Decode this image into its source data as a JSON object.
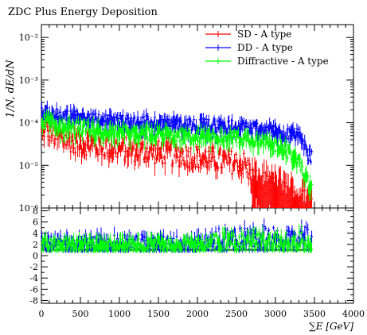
{
  "title": "ZDC Plus Energy Deposition",
  "chart_data": [
    {
      "panel": "main",
      "type": "errorbar",
      "ylabel": "1/N, dE/dN",
      "yscale": "log",
      "ylim": [
        1e-06,
        0.02
      ],
      "xlim": [
        0,
        4000
      ],
      "ytick_labels": [
        "10⁻²",
        "10⁻³",
        "10⁻⁴",
        "10⁻⁵",
        "10⁻⁶"
      ],
      "ytick_values": [
        0.01,
        0.001,
        0.0001,
        1e-05,
        1e-06
      ],
      "legend": "top-right",
      "series": [
        {
          "name": "SD - A type",
          "color": "#ff0000",
          "profile_x": [
            0,
            50,
            200,
            500,
            1000,
            1500,
            2000,
            2300,
            2600,
            2750,
            3000,
            3200,
            3300,
            3450
          ],
          "profile_y": [
            6e-05,
            8e-05,
            4.5e-05,
            3.5e-05,
            2.5e-05,
            2e-05,
            1.6e-05,
            1.3e-05,
            1.1e-05,
            4e-06,
            3e-06,
            2e-06,
            1.5e-06,
            1.5e-06
          ]
        },
        {
          "name": "DD - A type",
          "color": "#0000ff",
          "profile_x": [
            0,
            50,
            200,
            500,
            1000,
            1500,
            2000,
            2500,
            2900,
            3100,
            3300,
            3450
          ],
          "profile_y": [
            0.0002,
            0.00019,
            0.00015,
            0.00013,
            0.00011,
            0.0001,
            9e-05,
            8e-05,
            7e-05,
            6e-05,
            5e-05,
            1.5e-05
          ]
        },
        {
          "name": "Diffractive - A type",
          "color": "#00ff00",
          "profile_x": [
            0,
            50,
            200,
            500,
            1000,
            1500,
            2000,
            2500,
            2900,
            3100,
            3300,
            3450
          ],
          "profile_y": [
            0.00012,
            0.00012,
            9e-05,
            7.5e-05,
            6e-05,
            5.5e-05,
            5e-05,
            4.5e-05,
            3.5e-05,
            2.5e-05,
            1.2e-05,
            3e-06
          ]
        }
      ]
    },
    {
      "panel": "ratio",
      "type": "errorbar",
      "ylim": [
        -8.5,
        8.5
      ],
      "xlim": [
        0,
        4000
      ],
      "xlabel": "∑E [GeV]",
      "xtick_labels": [
        "0",
        "500",
        "1000",
        "1500",
        "2000",
        "2500",
        "3000",
        "3500",
        "4000"
      ],
      "ytick_labels": [
        "8",
        "6",
        "4",
        "2",
        "0",
        "-2",
        "-4",
        "-6",
        "-8"
      ],
      "ytick_values": [
        8,
        6,
        4,
        2,
        0,
        -2,
        -4,
        -6,
        -8
      ],
      "reference_line": 1
    }
  ]
}
